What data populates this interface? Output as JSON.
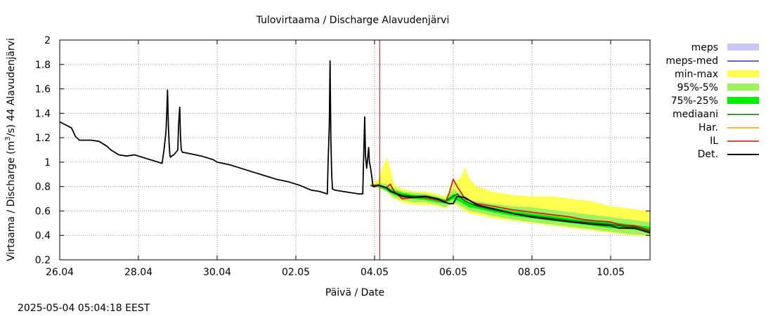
{
  "chart_data": {
    "type": "line",
    "title": "Tulovirtaama / Discharge  Alavudenjärvi",
    "xlabel": "Päivä / Date",
    "ylabel_prefix": "Virtaama / Discharge (m",
    "ylabel_sup": "3",
    "ylabel_suffix": "/s)  44 Alavudenjärvi",
    "timestamp": "2025-05-04  05:04:18 EEST",
    "x_unit": "days since 26.04 00:00",
    "xlim": [
      0,
      15
    ],
    "ylim": [
      0.2,
      2.0
    ],
    "grid": true,
    "x_ticks": [
      {
        "x": 0,
        "label": "26.04"
      },
      {
        "x": 2,
        "label": "28.04"
      },
      {
        "x": 4,
        "label": "30.04"
      },
      {
        "x": 6,
        "label": "02.05"
      },
      {
        "x": 8,
        "label": "04.05"
      },
      {
        "x": 10,
        "label": "06.05"
      },
      {
        "x": 12,
        "label": "08.05"
      },
      {
        "x": 14,
        "label": "10.05"
      }
    ],
    "y_ticks": [
      {
        "y": 0.2,
        "label": "0.2"
      },
      {
        "y": 0.4,
        "label": "0.4"
      },
      {
        "y": 0.6,
        "label": "0.6"
      },
      {
        "y": 0.8,
        "label": "0.8"
      },
      {
        "y": 1.0,
        "label": "1"
      },
      {
        "y": 1.2,
        "label": "1.2"
      },
      {
        "y": 1.4,
        "label": "1.4"
      },
      {
        "y": 1.6,
        "label": "1.6"
      },
      {
        "y": 1.8,
        "label": "1.8"
      },
      {
        "y": 2.0,
        "label": "2"
      }
    ],
    "now_x": 8.13,
    "legend": [
      {
        "key": "meps",
        "label": "meps",
        "style": "band",
        "color": "#c8c8f8"
      },
      {
        "key": "meps_med",
        "label": "meps-med",
        "style": "line",
        "color": "#3030c8"
      },
      {
        "key": "minmax",
        "label": "min-max",
        "style": "band",
        "color": "#ffff50"
      },
      {
        "key": "p95_5",
        "label": "95%-5%",
        "style": "band",
        "color": "#a0f060"
      },
      {
        "key": "p75_25",
        "label": "75%-25%",
        "style": "band",
        "color": "#00ee00"
      },
      {
        "key": "median",
        "label": "mediaani",
        "style": "line",
        "color": "#007000"
      },
      {
        "key": "har",
        "label": "Har.",
        "style": "line",
        "color": "#ff9900"
      },
      {
        "key": "il",
        "label": "IL",
        "style": "line",
        "color": "#ee0000"
      },
      {
        "key": "det",
        "label": "Det.",
        "style": "line",
        "color": "#000000"
      }
    ],
    "series": [
      {
        "name": "Det.",
        "color": "#000000",
        "x": [
          0,
          0.3,
          0.4,
          0.5,
          0.6,
          0.8,
          1.0,
          1.2,
          1.3,
          1.5,
          1.7,
          1.9,
          2.2,
          2.5,
          2.6,
          2.65,
          2.7,
          2.72,
          2.74,
          2.76,
          2.78,
          2.8,
          2.82,
          2.84,
          2.9,
          3.0,
          3.02,
          3.05,
          3.07,
          3.09,
          3.12,
          3.15,
          3.3,
          3.6,
          3.9,
          4.0,
          4.3,
          4.5,
          4.7,
          4.9,
          5.2,
          5.5,
          5.8,
          6.1,
          6.4,
          6.6,
          6.8,
          6.82,
          6.85,
          6.87,
          6.89,
          6.91,
          6.93,
          7.0,
          7.2,
          7.4,
          7.6,
          7.7,
          7.72,
          7.75,
          7.77,
          7.8,
          7.83,
          7.85,
          7.87,
          7.9,
          7.93,
          7.96,
          8.0,
          8.1,
          8.3,
          8.4,
          8.5,
          8.7,
          9.0,
          9.3,
          9.6,
          9.8,
          9.9,
          10.0,
          10.1,
          10.3,
          10.6,
          11.0,
          11.5,
          12.0,
          12.5,
          13.0,
          13.3,
          13.6,
          14.0,
          14.2,
          14.4,
          14.6,
          14.8,
          15.0
        ],
        "y": [
          1.33,
          1.28,
          1.21,
          1.18,
          1.18,
          1.18,
          1.17,
          1.13,
          1.1,
          1.06,
          1.05,
          1.06,
          1.03,
          1.0,
          0.99,
          1.1,
          1.25,
          1.4,
          1.59,
          1.3,
          1.15,
          1.05,
          1.04,
          1.05,
          1.06,
          1.1,
          1.3,
          1.45,
          1.2,
          1.1,
          1.08,
          1.08,
          1.07,
          1.05,
          1.02,
          1.0,
          0.98,
          0.96,
          0.94,
          0.92,
          0.89,
          0.86,
          0.84,
          0.81,
          0.77,
          0.76,
          0.74,
          1.0,
          1.3,
          1.83,
          1.2,
          0.9,
          0.78,
          0.77,
          0.76,
          0.75,
          0.74,
          0.74,
          1.0,
          1.37,
          1.05,
          0.95,
          1.05,
          1.12,
          1.0,
          0.95,
          0.88,
          0.8,
          0.8,
          0.81,
          0.79,
          0.76,
          0.75,
          0.72,
          0.71,
          0.72,
          0.7,
          0.67,
          0.66,
          0.66,
          0.72,
          0.71,
          0.65,
          0.62,
          0.58,
          0.55,
          0.53,
          0.51,
          0.5,
          0.49,
          0.48,
          0.46,
          0.46,
          0.46,
          0.44,
          0.42
        ]
      },
      {
        "name": "IL",
        "color": "#ee0000",
        "x": [
          7.9,
          8.1,
          8.3,
          8.4,
          8.5,
          8.7,
          9.0,
          9.3,
          9.6,
          9.8,
          9.9,
          10.0,
          10.1,
          10.3,
          10.6,
          11.0,
          11.5,
          12.0,
          12.5,
          13.0,
          13.3,
          13.6,
          14.0,
          14.2,
          14.4,
          14.6,
          14.8,
          15.0
        ],
        "y": [
          0.81,
          0.81,
          0.79,
          0.82,
          0.76,
          0.7,
          0.71,
          0.71,
          0.69,
          0.67,
          0.75,
          0.86,
          0.8,
          0.7,
          0.66,
          0.64,
          0.61,
          0.59,
          0.57,
          0.55,
          0.53,
          0.52,
          0.51,
          0.49,
          0.48,
          0.48,
          0.46,
          0.44
        ]
      },
      {
        "name": "mediaani",
        "color": "#007000",
        "x": [
          7.9,
          8.1,
          8.3,
          8.5,
          8.7,
          9.0,
          9.3,
          9.6,
          9.8,
          10.0,
          10.1,
          10.3,
          10.6,
          11.0,
          11.5,
          12.0,
          12.5,
          13.0,
          13.3,
          13.6,
          14.0,
          14.2,
          14.4,
          14.6,
          14.8,
          15.0
        ],
        "y": [
          0.81,
          0.81,
          0.79,
          0.75,
          0.73,
          0.72,
          0.72,
          0.7,
          0.68,
          0.72,
          0.74,
          0.68,
          0.64,
          0.61,
          0.58,
          0.56,
          0.54,
          0.52,
          0.51,
          0.5,
          0.49,
          0.48,
          0.47,
          0.47,
          0.45,
          0.43
        ]
      }
    ],
    "bands": [
      {
        "name": "min-max",
        "color": "#ffff50",
        "x": [
          7.9,
          8.1,
          8.3,
          8.4,
          8.5,
          8.7,
          9.0,
          9.3,
          9.6,
          9.8,
          10.0,
          10.2,
          10.3,
          10.4,
          10.6,
          11.0,
          11.5,
          12.0,
          12.5,
          13.0,
          13.5,
          14.0,
          14.5,
          15.0
        ],
        "upper": [
          0.81,
          0.86,
          1.04,
          0.95,
          0.82,
          0.78,
          0.76,
          0.76,
          0.74,
          0.72,
          0.83,
          0.88,
          0.96,
          0.87,
          0.8,
          0.76,
          0.73,
          0.72,
          0.72,
          0.7,
          0.68,
          0.64,
          0.62,
          0.6
        ],
        "lower": [
          0.8,
          0.79,
          0.77,
          0.72,
          0.7,
          0.67,
          0.65,
          0.65,
          0.64,
          0.62,
          0.66,
          0.62,
          0.6,
          0.58,
          0.57,
          0.54,
          0.52,
          0.5,
          0.48,
          0.46,
          0.44,
          0.42,
          0.4,
          0.39
        ]
      },
      {
        "name": "95%-5%",
        "color": "#a0f060",
        "x": [
          7.9,
          8.1,
          8.3,
          8.5,
          8.7,
          9.0,
          9.3,
          9.6,
          9.8,
          10.0,
          10.2,
          10.4,
          10.6,
          11.0,
          11.5,
          12.0,
          12.5,
          13.0,
          13.5,
          14.0,
          14.5,
          15.0
        ],
        "upper": [
          0.81,
          0.83,
          0.82,
          0.79,
          0.76,
          0.75,
          0.74,
          0.72,
          0.7,
          0.78,
          0.74,
          0.69,
          0.68,
          0.66,
          0.64,
          0.63,
          0.61,
          0.59,
          0.57,
          0.55,
          0.53,
          0.51
        ],
        "lower": [
          0.8,
          0.79,
          0.76,
          0.71,
          0.69,
          0.67,
          0.67,
          0.65,
          0.63,
          0.67,
          0.64,
          0.6,
          0.59,
          0.56,
          0.53,
          0.51,
          0.49,
          0.47,
          0.45,
          0.43,
          0.41,
          0.4
        ]
      },
      {
        "name": "75%-25%",
        "color": "#00ee00",
        "x": [
          7.9,
          8.1,
          8.3,
          8.5,
          8.7,
          9.0,
          9.3,
          9.6,
          9.8,
          10.0,
          10.2,
          10.4,
          10.6,
          11.0,
          11.5,
          12.0,
          12.5,
          13.0,
          13.5,
          14.0,
          14.5,
          15.0
        ],
        "upper": [
          0.81,
          0.82,
          0.8,
          0.77,
          0.75,
          0.73,
          0.73,
          0.71,
          0.69,
          0.74,
          0.71,
          0.67,
          0.65,
          0.63,
          0.6,
          0.58,
          0.56,
          0.54,
          0.52,
          0.51,
          0.49,
          0.47
        ],
        "lower": [
          0.8,
          0.8,
          0.77,
          0.73,
          0.71,
          0.7,
          0.69,
          0.67,
          0.66,
          0.7,
          0.67,
          0.63,
          0.62,
          0.59,
          0.56,
          0.54,
          0.52,
          0.5,
          0.48,
          0.46,
          0.45,
          0.43
        ]
      }
    ]
  }
}
